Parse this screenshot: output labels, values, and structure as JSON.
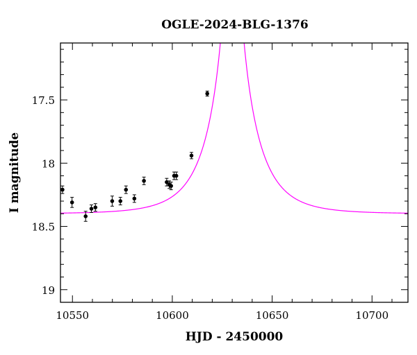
{
  "chart_data": {
    "type": "scatter",
    "title": "OGLE-2024-BLG-1376",
    "xlabel": "HJD - 2450000",
    "ylabel": "I magnitude",
    "xlim": [
      10544,
      10718
    ],
    "ylim": [
      19.1,
      17.05
    ],
    "y_inverted": true,
    "x_ticks": [
      10550,
      10600,
      10650,
      10700
    ],
    "x_tick_labels": [
      "10550",
      "10600",
      "10650",
      "10700"
    ],
    "y_ticks": [
      17.5,
      18,
      18.5,
      19
    ],
    "y_tick_labels": [
      "17.5",
      "18",
      "18.5",
      "19"
    ],
    "grid": false,
    "legend": "none",
    "series": [
      {
        "kind": "points_with_errorbars",
        "color": "#000000",
        "points": [
          {
            "x": 10545.0,
            "y": 18.21,
            "err": 0.03
          },
          {
            "x": 10549.8,
            "y": 18.31,
            "err": 0.04
          },
          {
            "x": 10556.6,
            "y": 18.42,
            "err": 0.04
          },
          {
            "x": 10559.5,
            "y": 18.36,
            "err": 0.03
          },
          {
            "x": 10561.5,
            "y": 18.35,
            "err": 0.03
          },
          {
            "x": 10569.9,
            "y": 18.3,
            "err": 0.04
          },
          {
            "x": 10574.0,
            "y": 18.3,
            "err": 0.03
          },
          {
            "x": 10576.8,
            "y": 18.21,
            "err": 0.03
          },
          {
            "x": 10581.0,
            "y": 18.28,
            "err": 0.03
          },
          {
            "x": 10585.8,
            "y": 18.14,
            "err": 0.03
          },
          {
            "x": 10597.2,
            "y": 18.15,
            "err": 0.03
          },
          {
            "x": 10598.5,
            "y": 18.17,
            "err": 0.03
          },
          {
            "x": 10599.4,
            "y": 18.18,
            "err": 0.03
          },
          {
            "x": 10600.9,
            "y": 18.1,
            "err": 0.03
          },
          {
            "x": 10602.0,
            "y": 18.1,
            "err": 0.03
          },
          {
            "x": 10609.6,
            "y": 17.94,
            "err": 0.025
          },
          {
            "x": 10617.5,
            "y": 17.45,
            "err": 0.02
          }
        ]
      },
      {
        "kind": "model_curve",
        "color": "#ff00ff",
        "model": {
          "t0": 10630.0,
          "tE": 20.0,
          "u0": 0.0001,
          "I_base": 18.4
        }
      }
    ]
  }
}
